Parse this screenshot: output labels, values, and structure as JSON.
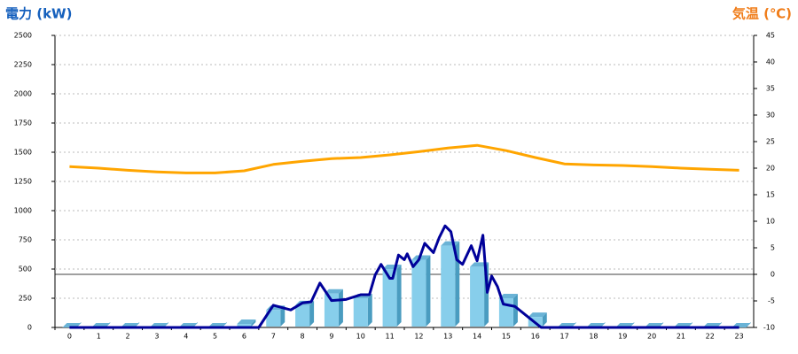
{
  "chart_data": {
    "type": "bar",
    "ylabel": "電力 (kW)",
    "y2label": "気温 (℃)",
    "ylabel_color": "#1560bd",
    "y2label_color": "#f07d1a",
    "categories": [
      "0",
      "1",
      "2",
      "3",
      "4",
      "5",
      "6",
      "7",
      "8",
      "9",
      "10",
      "11",
      "12",
      "13",
      "14",
      "15",
      "16",
      "17",
      "18",
      "19",
      "20",
      "21",
      "22",
      "23"
    ],
    "ylim": [
      0,
      2500
    ],
    "yticks": [
      0,
      250,
      500,
      750,
      1000,
      1250,
      1500,
      1750,
      2000,
      2250,
      2500
    ],
    "y2lim": [
      -10,
      45
    ],
    "y2ticks": [
      -10,
      -5,
      0,
      5,
      10,
      15,
      20,
      25,
      30,
      35,
      40,
      45
    ],
    "grid": true,
    "y2_zero_line": true,
    "series": [
      {
        "type": "bar",
        "color": "#87ceeb",
        "values": [
          0,
          0,
          0,
          0,
          0,
          0,
          30,
          150,
          190,
          290,
          250,
          500,
          580,
          700,
          520,
          250,
          90,
          0,
          0,
          0,
          0,
          0,
          0,
          0
        ]
      },
      {
        "type": "line",
        "color": "#000099",
        "x": [
          0,
          6.5,
          7,
          7.3,
          7.6,
          8,
          8.3,
          8.6,
          9,
          9.5,
          10,
          10.3,
          10.5,
          10.7,
          11,
          11.1,
          11.3,
          11.5,
          11.6,
          11.8,
          12,
          12.2,
          12.5,
          12.7,
          12.9,
          13.1,
          13.3,
          13.5,
          13.8,
          14,
          14.2,
          14.35,
          14.5,
          14.7,
          14.9,
          15.3,
          15.7,
          16.2,
          23
        ],
        "values": [
          0,
          0,
          190,
          170,
          150,
          210,
          220,
          380,
          230,
          240,
          280,
          280,
          450,
          540,
          420,
          420,
          620,
          580,
          630,
          520,
          580,
          720,
          640,
          770,
          870,
          820,
          580,
          540,
          700,
          570,
          790,
          300,
          440,
          350,
          200,
          180,
          100,
          0,
          0
        ]
      },
      {
        "type": "line",
        "color": "#ffa500",
        "axis": "y2",
        "x": [
          0,
          1,
          2,
          3,
          4,
          5,
          6,
          7,
          8,
          9,
          10,
          11,
          12,
          13,
          14,
          15,
          16,
          17,
          18,
          19,
          20,
          21,
          22,
          23
        ],
        "values": [
          20.3,
          20,
          19.6,
          19.3,
          19.1,
          19.1,
          19.5,
          20.7,
          21.3,
          21.8,
          22,
          22.5,
          23.1,
          23.8,
          24.3,
          23.3,
          22,
          20.8,
          20.6,
          20.5,
          20.3,
          20,
          19.8,
          19.6
        ]
      }
    ]
  }
}
